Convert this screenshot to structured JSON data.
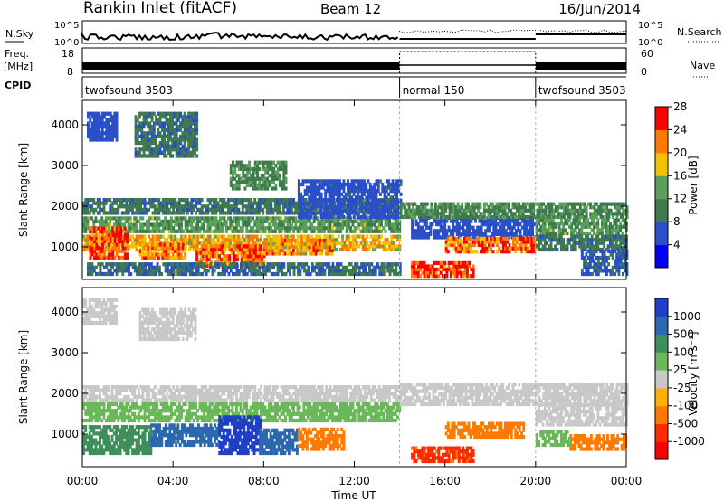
{
  "header": {
    "title": "Rankin Inlet (fitACF)",
    "beam": "Beam 12",
    "date": "16/Jun/2014"
  },
  "top_panels": {
    "nsky_label": "N.Sky",
    "nsky_ticks": [
      "10^5",
      "10^0"
    ],
    "nsearch_label": "N.Search",
    "freq_label": "Freq.",
    "freq_unit": "[MHz]",
    "freq_ticks": [
      "18",
      "8"
    ],
    "nave_ticks": [
      "60",
      "0"
    ],
    "nave_label": "Nave",
    "cpid_label": "CPID",
    "cpid_segments": [
      {
        "label": "twofsound 3503",
        "start_hour": 0,
        "end_hour": 14
      },
      {
        "label": "normal 150",
        "start_hour": 14,
        "end_hour": 20
      },
      {
        "label": "twofsound 3503",
        "start_hour": 20,
        "end_hour": 24
      }
    ]
  },
  "chart_data": [
    {
      "type": "heatmap",
      "name": "power",
      "ylabel": "Slant Range [km]",
      "yticks": [
        1000,
        2000,
        3000,
        4000
      ],
      "ylim": [
        200,
        4600
      ],
      "xlim": [
        0,
        24
      ],
      "colorbar_label": "Power [dB]",
      "colorbar_ticks": [
        4,
        8,
        12,
        16,
        20,
        24,
        28
      ],
      "colorbar_range": [
        0,
        30
      ],
      "colors": [
        "#0000ff",
        "#2a4fc8",
        "#3f7a4e",
        "#5aa05a",
        "#f2c200",
        "#ff7a00",
        "#ff0000"
      ],
      "regions": [
        {
          "t0": 0.0,
          "t1": 14.0,
          "r0": 1800,
          "r1": 2150,
          "value": 10
        },
        {
          "t0": 0.0,
          "t1": 14.0,
          "r0": 1350,
          "r1": 1750,
          "value": 14
        },
        {
          "t0": 0.0,
          "t1": 14.0,
          "r0": 900,
          "r1": 1300,
          "value": 20
        },
        {
          "t0": 0.3,
          "t1": 2.0,
          "r0": 700,
          "r1": 1500,
          "value": 26
        },
        {
          "t0": 2.5,
          "t1": 4.5,
          "r0": 700,
          "r1": 1100,
          "value": 23
        },
        {
          "t0": 5.0,
          "t1": 8.0,
          "r0": 500,
          "r1": 1000,
          "value": 25
        },
        {
          "t0": 8.0,
          "t1": 11.0,
          "r0": 800,
          "r1": 1200,
          "value": 22
        },
        {
          "t0": 0.2,
          "t1": 14.0,
          "r0": 300,
          "r1": 600,
          "value": 9
        },
        {
          "t0": 9.5,
          "t1": 14.0,
          "r0": 1700,
          "r1": 2600,
          "value": 7
        },
        {
          "t0": 14.5,
          "t1": 17.2,
          "r0": 250,
          "r1": 650,
          "value": 28
        },
        {
          "t0": 14.5,
          "t1": 20.0,
          "r0": 1200,
          "r1": 1700,
          "value": 6
        },
        {
          "t0": 16.0,
          "t1": 20.0,
          "r0": 850,
          "r1": 1200,
          "value": 24
        },
        {
          "t0": 14.0,
          "t1": 24.0,
          "r0": 1700,
          "r1": 2100,
          "value": 12
        },
        {
          "t0": 20.0,
          "t1": 24.0,
          "r0": 1300,
          "r1": 1700,
          "value": 14
        },
        {
          "t0": 20.0,
          "t1": 24.0,
          "r0": 900,
          "r1": 1300,
          "value": 10
        },
        {
          "t0": 22.0,
          "t1": 24.0,
          "r0": 300,
          "r1": 900,
          "value": 8
        },
        {
          "t0": 0.2,
          "t1": 1.5,
          "r0": 3600,
          "r1": 4300,
          "value": 6
        },
        {
          "t0": 2.3,
          "t1": 5.0,
          "r0": 3200,
          "r1": 4300,
          "value": 10
        },
        {
          "t0": 6.5,
          "t1": 9.0,
          "r0": 2400,
          "r1": 3100,
          "value": 12
        }
      ]
    },
    {
      "type": "heatmap",
      "name": "velocity",
      "ylabel": "Slant Range [km]",
      "yticks": [
        1000,
        2000,
        3000,
        4000
      ],
      "ylim": [
        200,
        4600
      ],
      "xlabel": "Time UT",
      "xticks": [
        "00:00",
        "04:00",
        "08:00",
        "12:00",
        "16:00",
        "20:00",
        "00:00"
      ],
      "xlim": [
        0,
        24
      ],
      "colorbar_label": "Velocity [m s⁻¹]",
      "colorbar_ticks": [
        "1000",
        "500",
        "100",
        "25",
        "-25",
        "-100",
        "-500",
        "-1000"
      ],
      "colors": [
        "#1f3fc8",
        "#2a68b0",
        "#3f8f5a",
        "#6ab85a",
        "#c8c8c8",
        "#ffb000",
        "#ff7a00",
        "#ff2a00",
        "#ff0000"
      ],
      "regions": [
        {
          "t0": 0.0,
          "t1": 14.0,
          "r0": 1800,
          "r1": 2150,
          "value": 0
        },
        {
          "t0": 0.0,
          "t1": 14.0,
          "r0": 1300,
          "r1": 1750,
          "value": 10
        },
        {
          "t0": 0.0,
          "t1": 3.0,
          "r0": 500,
          "r1": 1200,
          "value": 60
        },
        {
          "t0": 3.0,
          "t1": 6.0,
          "r0": 700,
          "r1": 1200,
          "value": 200
        },
        {
          "t0": 6.0,
          "t1": 7.8,
          "r0": 500,
          "r1": 1400,
          "value": 800
        },
        {
          "t0": 7.8,
          "t1": 9.5,
          "r0": 500,
          "r1": 1100,
          "value": 150
        },
        {
          "t0": 9.5,
          "t1": 11.5,
          "r0": 600,
          "r1": 1100,
          "value": -150
        },
        {
          "t0": 0.0,
          "t1": 1.5,
          "r0": 3700,
          "r1": 4300,
          "value": 0
        },
        {
          "t0": 2.5,
          "t1": 5.0,
          "r0": 3300,
          "r1": 4100,
          "value": 0
        },
        {
          "t0": 14.5,
          "t1": 17.2,
          "r0": 300,
          "r1": 700,
          "value": -600
        },
        {
          "t0": 16.0,
          "t1": 19.5,
          "r0": 900,
          "r1": 1300,
          "value": -400
        },
        {
          "t0": 14.0,
          "t1": 24.0,
          "r0": 1700,
          "r1": 2200,
          "value": 0
        },
        {
          "t0": 20.0,
          "t1": 24.0,
          "r0": 1200,
          "r1": 1700,
          "value": 0
        },
        {
          "t0": 21.5,
          "t1": 24.0,
          "r0": 600,
          "r1": 1000,
          "value": -300
        },
        {
          "t0": 20.0,
          "t1": 21.5,
          "r0": 700,
          "r1": 1100,
          "value": 10
        }
      ]
    }
  ]
}
